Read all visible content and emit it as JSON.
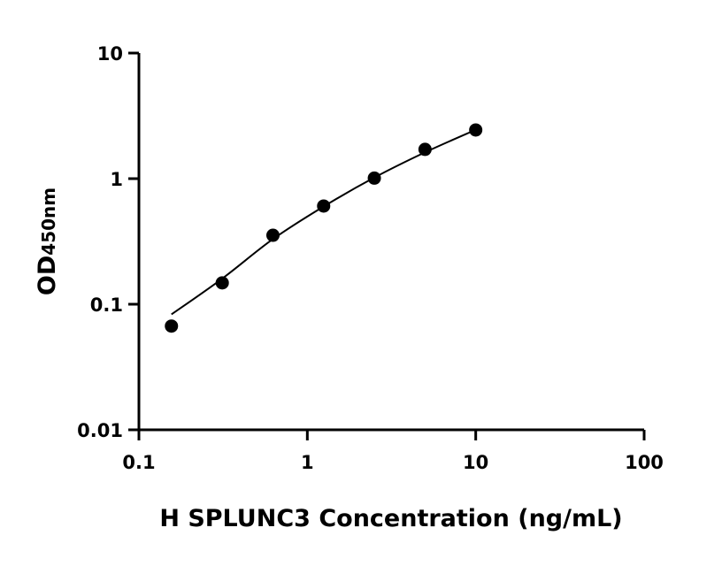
{
  "chart_data": {
    "type": "scatter",
    "title": "",
    "xlabel": "H SPLUNC3 Concentration (ng/mL)",
    "ylabel_main": "OD",
    "ylabel_sub": "450nm",
    "x_scale": "log",
    "y_scale": "log",
    "xlim": [
      0.1,
      100
    ],
    "ylim": [
      0.01,
      10
    ],
    "x_ticks": [
      0.1,
      1,
      10,
      100
    ],
    "x_tick_labels": [
      "0.1",
      "1",
      "10",
      "100"
    ],
    "y_ticks": [
      0.01,
      0.1,
      1,
      10
    ],
    "y_tick_labels": [
      "0.01",
      "0.1",
      "1",
      "10"
    ],
    "grid": false,
    "legend": "none",
    "x": [
      0.156,
      0.3125,
      0.625,
      1.25,
      2.5,
      5,
      10
    ],
    "points": [
      0.067,
      0.148,
      0.354,
      0.605,
      1.01,
      1.71,
      2.44
    ],
    "fit_curve": [
      0.083,
      0.16,
      0.33,
      0.6,
      1.02,
      1.62,
      2.45
    ],
    "point_color": "#000000",
    "line_color": "#000000"
  }
}
